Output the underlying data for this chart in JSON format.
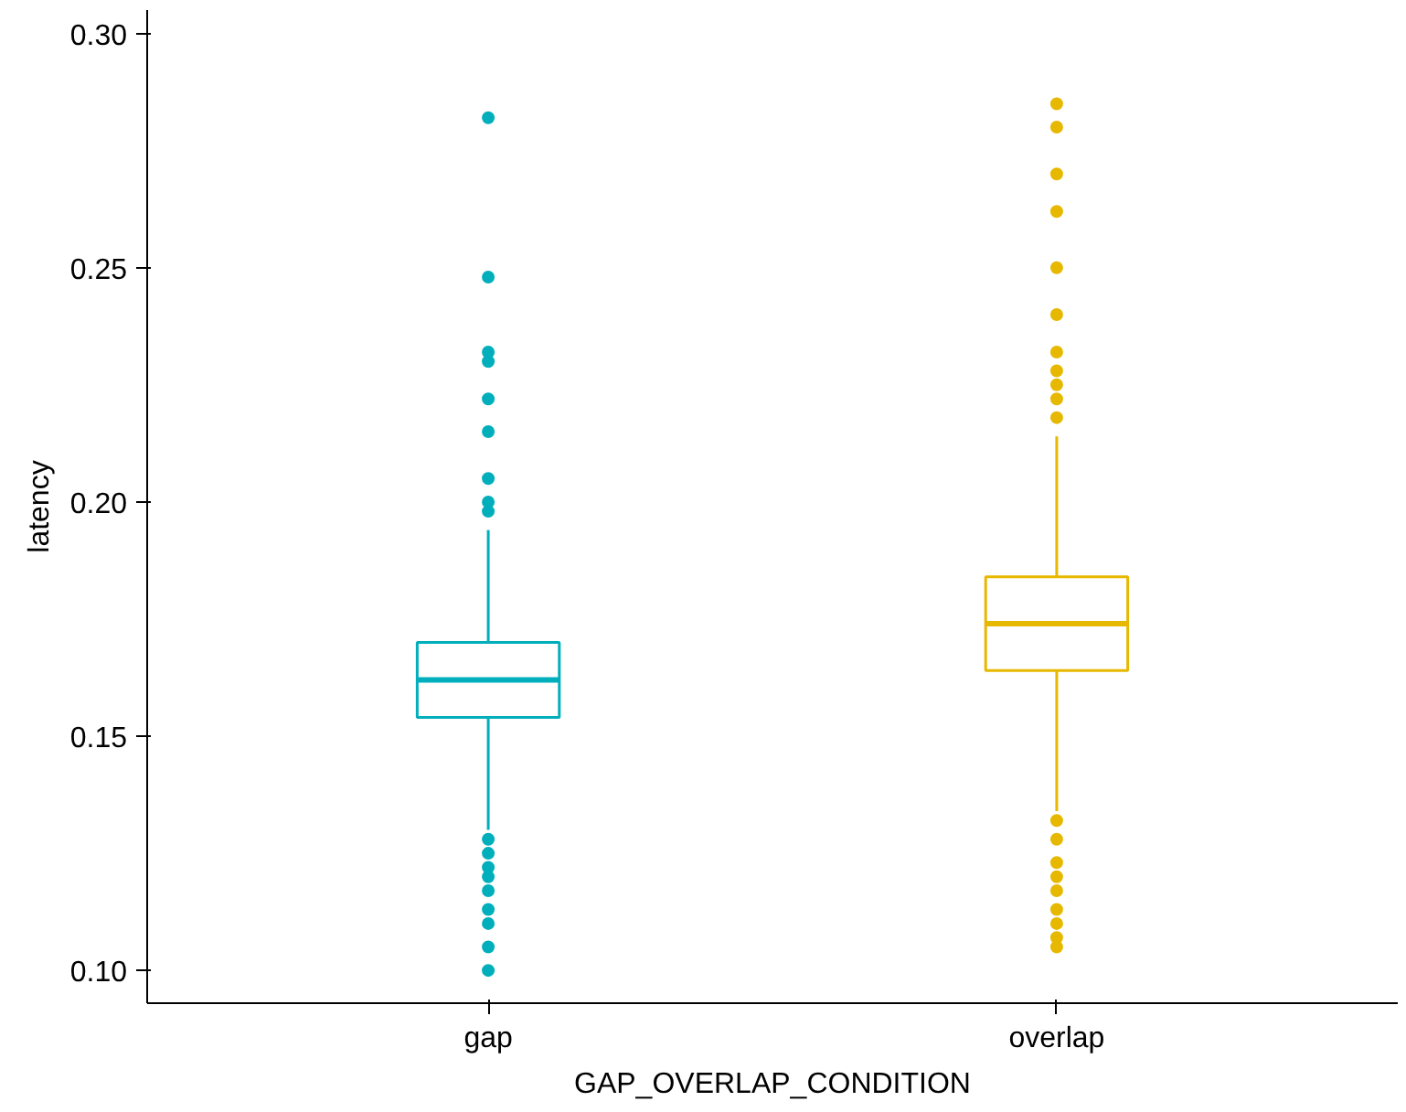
{
  "chart_data": {
    "type": "box",
    "xlabel": "GAP_OVERLAP_CONDITION",
    "ylabel": "latency",
    "categories": [
      "gap",
      "overlap"
    ],
    "ylim": [
      0.093,
      0.305
    ],
    "yticks": [
      {
        "value": 0.1,
        "label": "0.10"
      },
      {
        "value": 0.15,
        "label": "0.15"
      },
      {
        "value": 0.2,
        "label": "0.20"
      },
      {
        "value": 0.25,
        "label": "0.25"
      },
      {
        "value": 0.3,
        "label": "0.30"
      }
    ],
    "grid": false,
    "series": [
      {
        "color": "#00afbb",
        "boxes": [
          {
            "low": 0.13,
            "q1": 0.154,
            "median": 0.162,
            "q3": 0.17,
            "high": 0.194,
            "outliers": [
              0.282,
              0.248,
              0.232,
              0.23,
              0.222,
              0.215,
              0.205,
              0.2,
              0.198,
              0.128,
              0.125,
              0.122,
              0.12,
              0.117,
              0.113,
              0.11,
              0.105,
              0.1
            ]
          },
          null
        ]
      },
      {
        "color": "#e7b800",
        "boxes": [
          null,
          {
            "low": 0.134,
            "q1": 0.164,
            "median": 0.174,
            "q3": 0.184,
            "high": 0.214,
            "outliers": [
              0.285,
              0.28,
              0.27,
              0.262,
              0.25,
              0.24,
              0.232,
              0.228,
              0.225,
              0.222,
              0.218,
              0.132,
              0.128,
              0.123,
              0.12,
              0.117,
              0.113,
              0.11,
              0.107,
              0.105
            ]
          }
        ]
      }
    ]
  }
}
